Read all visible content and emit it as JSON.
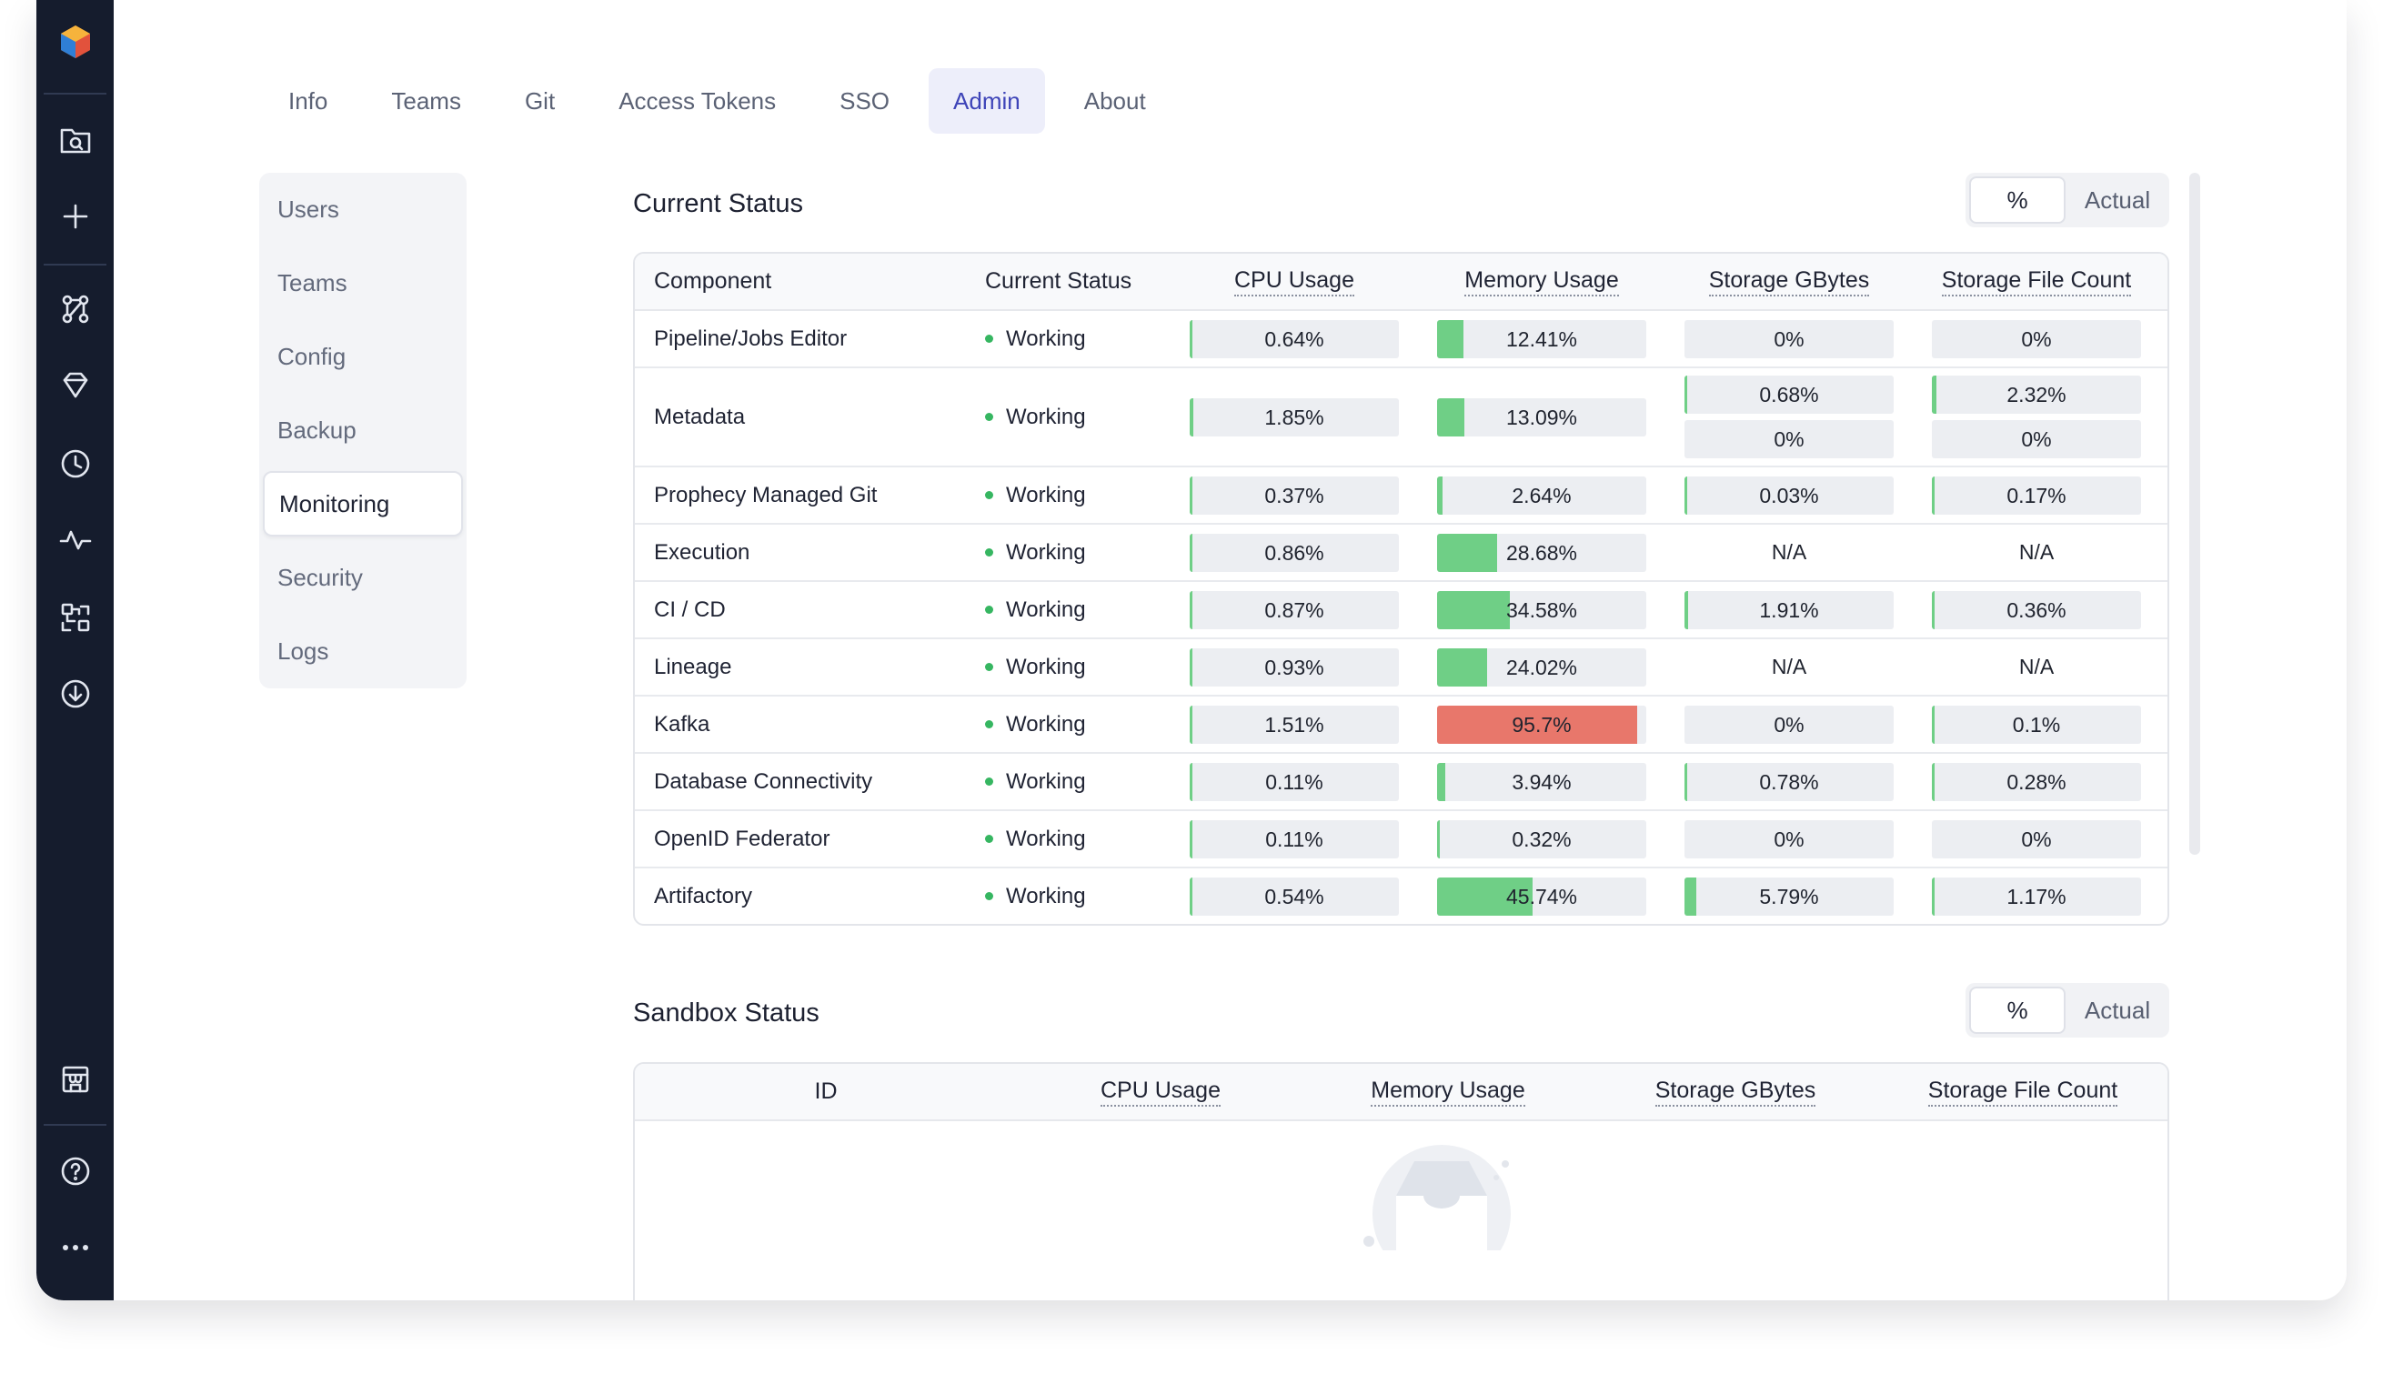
{
  "tabs": [
    {
      "label": "Info"
    },
    {
      "label": "Teams"
    },
    {
      "label": "Git"
    },
    {
      "label": "Access Tokens"
    },
    {
      "label": "SSO"
    },
    {
      "label": "Admin",
      "active": true
    },
    {
      "label": "About"
    }
  ],
  "sidebar": {
    "items": [
      {
        "label": "Users"
      },
      {
        "label": "Teams"
      },
      {
        "label": "Config"
      },
      {
        "label": "Backup"
      },
      {
        "label": "Monitoring",
        "active": true
      },
      {
        "label": "Security"
      },
      {
        "label": "Logs"
      }
    ]
  },
  "rail": {
    "icons": [
      "logo-icon",
      "folder-search-icon",
      "plus-icon",
      "git-graph-icon",
      "diamond-icon",
      "clock-icon",
      "activity-icon",
      "lineage-icon",
      "download-icon",
      "store-icon",
      "help-icon",
      "more-icon"
    ]
  },
  "current_status": {
    "title": "Current Status",
    "toggle": {
      "percent": "%",
      "actual": "Actual"
    },
    "headers": {
      "component": "Component",
      "status": "Current Status",
      "cpu": "CPU Usage",
      "memory": "Memory Usage",
      "storage": "Storage GBytes",
      "files": "Storage File Count"
    },
    "rows": [
      {
        "component": "Pipeline/Jobs Editor",
        "status": "Working",
        "cpu": "0.64%",
        "cpu_v": 0.64,
        "mem": "12.41%",
        "mem_v": 12.41,
        "storage": [
          "0%"
        ],
        "storage_v": [
          0
        ],
        "files": [
          "0%"
        ],
        "files_v": [
          0
        ]
      },
      {
        "component": "Metadata",
        "status": "Working",
        "cpu": "1.85%",
        "cpu_v": 1.85,
        "mem": "13.09%",
        "mem_v": 13.09,
        "storage": [
          "0.68%",
          "0%"
        ],
        "storage_v": [
          0.68,
          0
        ],
        "files": [
          "2.32%",
          "0%"
        ],
        "files_v": [
          2.32,
          0
        ]
      },
      {
        "component": "Prophecy Managed Git",
        "status": "Working",
        "cpu": "0.37%",
        "cpu_v": 0.37,
        "mem": "2.64%",
        "mem_v": 2.64,
        "storage": [
          "0.03%"
        ],
        "storage_v": [
          0.03
        ],
        "files": [
          "0.17%"
        ],
        "files_v": [
          0.17
        ]
      },
      {
        "component": "Execution",
        "status": "Working",
        "cpu": "0.86%",
        "cpu_v": 0.86,
        "mem": "28.68%",
        "mem_v": 28.68,
        "storage": [
          "N/A"
        ],
        "storage_v": [
          null
        ],
        "files": [
          "N/A"
        ],
        "files_v": [
          null
        ]
      },
      {
        "component": "CI / CD",
        "status": "Working",
        "cpu": "0.87%",
        "cpu_v": 0.87,
        "mem": "34.58%",
        "mem_v": 34.58,
        "storage": [
          "1.91%"
        ],
        "storage_v": [
          1.91
        ],
        "files": [
          "0.36%"
        ],
        "files_v": [
          0.36
        ]
      },
      {
        "component": "Lineage",
        "status": "Working",
        "cpu": "0.93%",
        "cpu_v": 0.93,
        "mem": "24.02%",
        "mem_v": 24.02,
        "storage": [
          "N/A"
        ],
        "storage_v": [
          null
        ],
        "files": [
          "N/A"
        ],
        "files_v": [
          null
        ]
      },
      {
        "component": "Kafka",
        "status": "Working",
        "cpu": "1.51%",
        "cpu_v": 1.51,
        "mem": "95.7%",
        "mem_v": 95.7,
        "storage": [
          "0%"
        ],
        "storage_v": [
          0
        ],
        "files": [
          "0.1%"
        ],
        "files_v": [
          0.1
        ]
      },
      {
        "component": "Database Connectivity",
        "status": "Working",
        "cpu": "0.11%",
        "cpu_v": 0.11,
        "mem": "3.94%",
        "mem_v": 3.94,
        "storage": [
          "0.78%"
        ],
        "storage_v": [
          0.78
        ],
        "files": [
          "0.28%"
        ],
        "files_v": [
          0.28
        ]
      },
      {
        "component": "OpenID Federator",
        "status": "Working",
        "cpu": "0.11%",
        "cpu_v": 0.11,
        "mem": "0.32%",
        "mem_v": 0.32,
        "storage": [
          "0%"
        ],
        "storage_v": [
          0
        ],
        "files": [
          "0%"
        ],
        "files_v": [
          0
        ]
      },
      {
        "component": "Artifactory",
        "status": "Working",
        "cpu": "0.54%",
        "cpu_v": 0.54,
        "mem": "45.74%",
        "mem_v": 45.74,
        "storage": [
          "5.79%"
        ],
        "storage_v": [
          5.79
        ],
        "files": [
          "1.17%"
        ],
        "files_v": [
          1.17
        ]
      }
    ]
  },
  "sandbox_status": {
    "title": "Sandbox Status",
    "toggle": {
      "percent": "%",
      "actual": "Actual"
    },
    "headers": {
      "id": "ID",
      "cpu": "CPU Usage",
      "memory": "Memory Usage",
      "storage": "Storage GBytes",
      "files": "Storage File Count"
    },
    "empty_icon": "empty-inbox-icon"
  },
  "colors": {
    "rail": "#151c2d",
    "accent": "#3e44b8",
    "fill_ok": "#6fcf86",
    "fill_hot": "#e8776b",
    "status_dot": "#36b661"
  }
}
